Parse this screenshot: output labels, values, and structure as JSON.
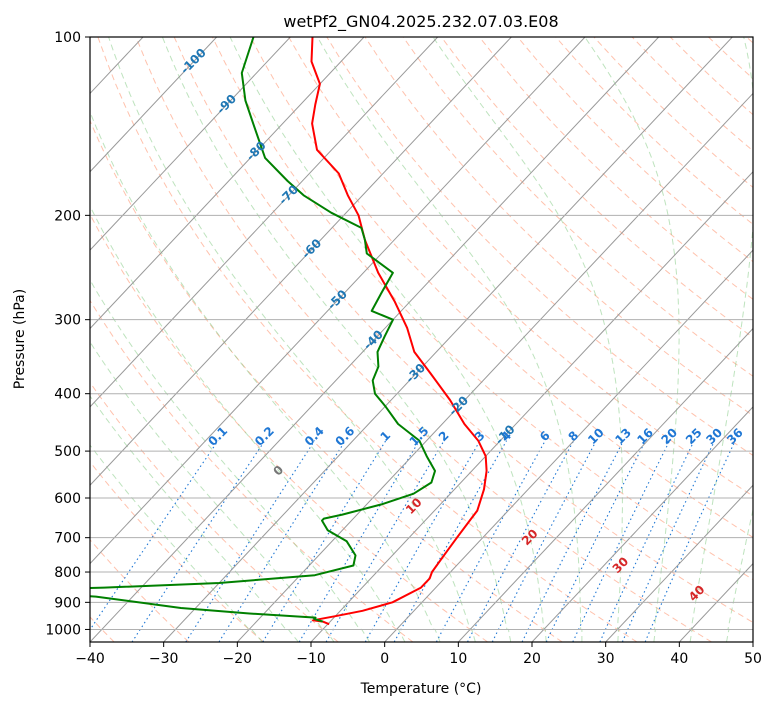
{
  "chart_data": {
    "type": "line",
    "chart_kind": "skew-T log-P diagram",
    "title": "wetPf2_GN04.2025.232.07.03.E08",
    "xlabel": "Temperature (°C)",
    "ylabel": "Pressure (hPa)",
    "xlim": [
      -40,
      50
    ],
    "ylim": [
      1050,
      100
    ],
    "y_scale": "log",
    "grid": true,
    "x_ticks": [
      "−40",
      "−30",
      "−20",
      "−10",
      "0",
      "10",
      "20",
      "30",
      "40",
      "50"
    ],
    "x_tick_values": [
      -40,
      -30,
      -20,
      -10,
      0,
      10,
      20,
      30,
      40,
      50
    ],
    "y_ticks": [
      "100",
      "200",
      "300",
      "400",
      "500",
      "600",
      "700",
      "800",
      "900",
      "1000"
    ],
    "y_tick_values": [
      100,
      200,
      300,
      400,
      500,
      600,
      700,
      800,
      900,
      1000
    ],
    "colors": {
      "temperature": "#ff0000",
      "dewpoint": "#008000",
      "isotherm": "#999999",
      "dry_adiabat": "#ff9977",
      "moist_adiabat": "#88cc88",
      "mixing_ratio": "#1f77d4",
      "isotherm_label": "#1f77b4",
      "moist_label": "#d62728",
      "dry_label_zero": "#777777"
    },
    "series": [
      {
        "name": "temperature",
        "points": [
          [
            -9.8,
            980
          ],
          [
            -11,
            970
          ],
          [
            -12.5,
            965
          ],
          [
            -10,
            950
          ],
          [
            -7,
            930
          ],
          [
            -4,
            900
          ],
          [
            -2,
            850
          ],
          [
            -2,
            820
          ],
          [
            -2.5,
            800
          ],
          [
            -3,
            750
          ],
          [
            -3.5,
            700
          ],
          [
            -4,
            650
          ],
          [
            -4.2,
            630
          ],
          [
            -6,
            580
          ],
          [
            -8,
            540
          ],
          [
            -10,
            510
          ],
          [
            -13,
            480
          ],
          [
            -17,
            450
          ],
          [
            -22,
            410
          ],
          [
            -28,
            370
          ],
          [
            -33,
            340
          ],
          [
            -37,
            310
          ],
          [
            -42,
            280
          ],
          [
            -48,
            250
          ],
          [
            -54,
            220
          ],
          [
            -58,
            200
          ],
          [
            -62,
            185
          ],
          [
            -66,
            170
          ],
          [
            -72,
            155
          ],
          [
            -76,
            140
          ],
          [
            -78,
            130
          ],
          [
            -80,
            120
          ],
          [
            -84,
            110
          ],
          [
            -87,
            100
          ]
        ]
      },
      {
        "name": "dewpoint",
        "points": [
          [
            -11,
            970
          ],
          [
            -12.5,
            960
          ],
          [
            -12.5,
            955
          ],
          [
            -22,
            940
          ],
          [
            -32,
            920
          ],
          [
            -45,
            880
          ],
          [
            -60,
            860
          ],
          [
            -45,
            850
          ],
          [
            -30,
            835
          ],
          [
            -18,
            810
          ],
          [
            -14,
            780
          ],
          [
            -15,
            750
          ],
          [
            -18,
            710
          ],
          [
            -22,
            680
          ],
          [
            -24,
            655
          ],
          [
            -24,
            650
          ],
          [
            -22,
            640
          ],
          [
            -18,
            615
          ],
          [
            -15,
            590
          ],
          [
            -14,
            565
          ],
          [
            -15,
            540
          ],
          [
            -18,
            510
          ],
          [
            -21,
            480
          ],
          [
            -26,
            450
          ],
          [
            -30,
            420
          ],
          [
            -33,
            400
          ],
          [
            -35,
            380
          ],
          [
            -36,
            360
          ],
          [
            -38,
            340
          ],
          [
            -39,
            320
          ],
          [
            -40,
            300
          ],
          [
            -44,
            290
          ],
          [
            -45,
            270
          ],
          [
            -46,
            250
          ],
          [
            -52,
            232
          ],
          [
            -54,
            220
          ],
          [
            -56,
            210
          ],
          [
            -62,
            198
          ],
          [
            -68,
            185
          ],
          [
            -72,
            175
          ],
          [
            -78,
            160
          ],
          [
            -84,
            140
          ],
          [
            -88,
            128
          ],
          [
            -92,
            115
          ],
          [
            -95,
            100
          ]
        ]
      }
    ],
    "isotherm_labels": [
      "-100",
      "-90",
      "-80",
      "-70",
      "-60",
      "-50",
      "-40",
      "-30",
      "-20",
      "-10"
    ],
    "isotherm_label_values": [
      -100,
      -90,
      -80,
      -70,
      -60,
      -50,
      -40,
      -30,
      -20,
      -10
    ],
    "isotherm_label_pressures": [
      110,
      130,
      156,
      185,
      228,
      278,
      325,
      370,
      420,
      470
    ],
    "mixing_ratio_labels": [
      "0.1",
      "0.2",
      "0.4",
      "0.6",
      "1",
      "1.5",
      "2",
      "3",
      "4",
      "6",
      "8",
      "10",
      "13",
      "16",
      "20",
      "25",
      "30",
      "36"
    ],
    "mixing_ratio_values": [
      0.1,
      0.2,
      0.4,
      0.6,
      1,
      1.5,
      2,
      3,
      4,
      6,
      8,
      10,
      13,
      16,
      20,
      25,
      30,
      36
    ],
    "moist_adiabat_labels": [
      "0",
      "10",
      "20",
      "30",
      "40"
    ],
    "moist_adiabat_values": [
      0,
      10,
      20,
      30,
      40
    ],
    "moist_adiabat_label_pressures": [
      540,
      620,
      700,
      780,
      870
    ]
  }
}
